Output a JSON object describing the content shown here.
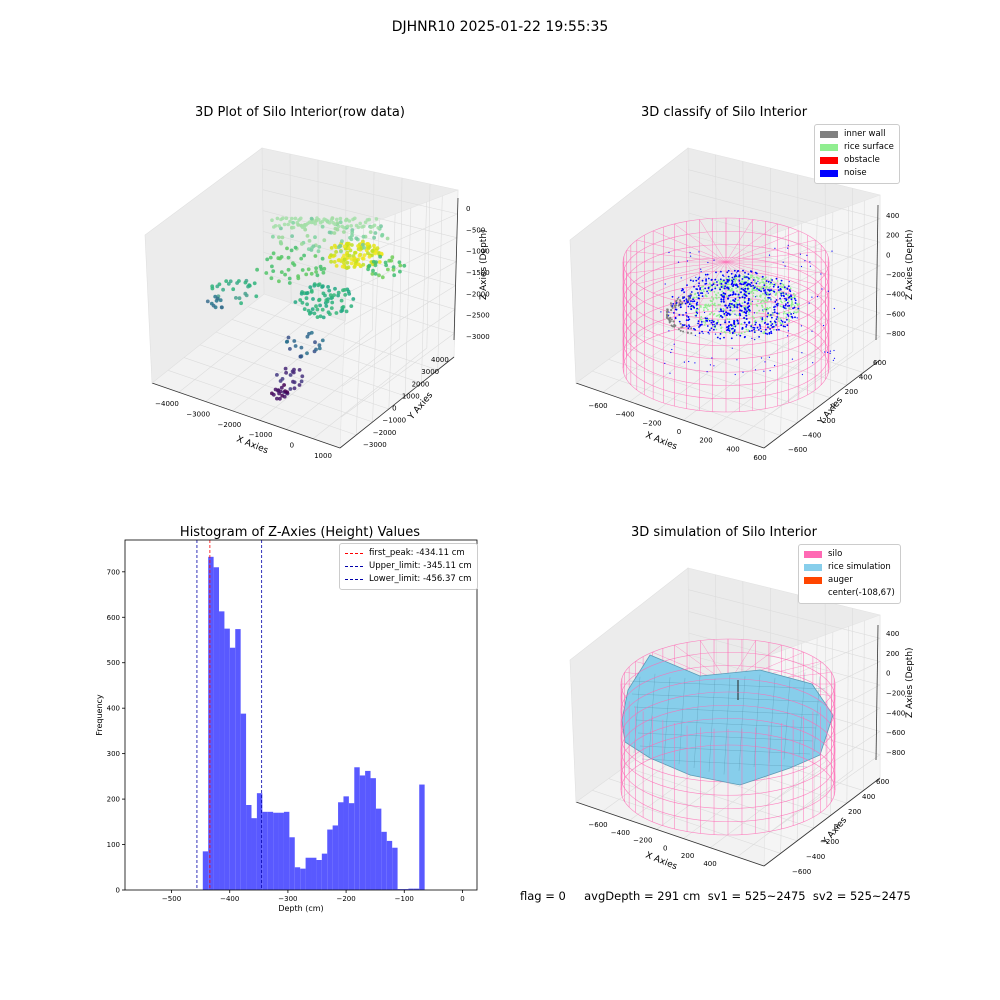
{
  "suptitle": "DJHNR10 2025-01-22 19:55:35",
  "colors": {
    "inner_wall": "#808080",
    "rice_surface": "#90ee90",
    "obstacle": "#ff0000",
    "noise": "#0000ff",
    "silo": "#ff69b4",
    "rice_simulation": "#87ceeb",
    "auger": "#ff4500",
    "hist_bar": "#5050ff",
    "first_peak": "#ff0000",
    "limits": "#0000aa"
  },
  "panels": {
    "raw": {
      "title": "3D Plot of Silo Interior(row data)",
      "xlabel": "X Axies",
      "ylabel": "Y Axies",
      "zlabel": "Z Axies (Depth)",
      "xticks": [
        "−4000",
        "−3000",
        "−2000",
        "−1000",
        "0",
        "1000"
      ],
      "yticks": [
        "−3000",
        "−2000",
        "−1000",
        "0",
        "1000",
        "2000",
        "3000",
        "4000"
      ],
      "zticks": [
        "0",
        "−500",
        "−1000",
        "−1500",
        "−2000",
        "−2500",
        "−3000"
      ]
    },
    "classify": {
      "title": "3D classify of Silo Interior",
      "xlabel": "X Axies",
      "ylabel": "Y Axies",
      "zlabel": "Z Axies (Depth)",
      "xticks": [
        "−600",
        "−400",
        "−200",
        "0",
        "200",
        "400",
        "600"
      ],
      "yticks": [
        "−600",
        "−400",
        "−200",
        "0",
        "200",
        "400",
        "600"
      ],
      "zticks": [
        "400",
        "200",
        "0",
        "−200",
        "−400",
        "−600",
        "−800"
      ],
      "legend": [
        "inner wall",
        "rice surface",
        "obstacle",
        "noise"
      ]
    },
    "simulation": {
      "title": "3D simulation of Silo Interior",
      "xlabel": "X Axies",
      "ylabel": "Y Axies",
      "zlabel": "Z Axies (Depth)",
      "xticks": [
        "−600",
        "−400",
        "−200",
        "0",
        "200",
        "400"
      ],
      "yticks": [
        "−600",
        "−400",
        "−200",
        "0",
        "200",
        "400",
        "600"
      ],
      "zticks": [
        "400",
        "200",
        "0",
        "−200",
        "−400",
        "−600",
        "−800"
      ],
      "legend": [
        "silo",
        "rice simulation",
        "auger",
        "center(-108,67)"
      ]
    }
  },
  "footer": "flag = 0     avgDepth = 291 cm  sv1 = 525~2475  sv2 = 525~2475",
  "chart_data": [
    {
      "type": "bar",
      "title": "Histogram of Z-Axies (Height) Values",
      "xlabel": "Depth (cm)",
      "ylabel": "Frequency",
      "xlim": [
        -580,
        25
      ],
      "ylim": [
        0,
        770
      ],
      "xticks": [
        -500,
        -400,
        -300,
        -200,
        -100,
        0
      ],
      "yticks": [
        0,
        100,
        200,
        300,
        400,
        500,
        600,
        700
      ],
      "bin_width": 9.3,
      "bin_starts": [
        -446.3,
        -437.0,
        -427.7,
        -418.4,
        -409.1,
        -399.8,
        -390.5,
        -381.2,
        -371.9,
        -362.6,
        -353.3,
        -344.0,
        -334.7,
        -325.4,
        -316.1,
        -306.8,
        -297.5,
        -288.2,
        -278.9,
        -269.6,
        -260.3,
        -251.0,
        -241.7,
        -232.4,
        -223.1,
        -213.8,
        -204.5,
        -195.2,
        -185.9,
        -176.6,
        -167.3,
        -158.0,
        -148.7,
        -139.4,
        -130.1,
        -120.8,
        -111.5,
        -102.2,
        -92.9,
        -83.6,
        -74.3,
        -65.0,
        -55.7,
        -46.4,
        -37.1,
        -27.8,
        -18.5,
        -9.2
      ],
      "values": [
        85,
        733,
        710,
        613,
        575,
        533,
        574,
        388,
        187,
        158,
        213,
        172,
        172,
        170,
        170,
        172,
        116,
        50,
        47,
        71,
        71,
        66,
        80,
        133,
        142,
        193,
        206,
        191,
        270,
        252,
        262,
        246,
        179,
        128,
        108,
        93,
        2,
        2,
        3,
        3,
        232,
        0,
        0,
        0,
        0,
        0,
        0,
        0
      ],
      "vlines": [
        {
          "label": "first_peak: -434.11 cm",
          "x": -434.11
        },
        {
          "label": "Upper_limit: -345.11 cm",
          "x": -345.11
        },
        {
          "label": "Lower_limit: -456.37 cm",
          "x": -456.37
        }
      ]
    }
  ]
}
